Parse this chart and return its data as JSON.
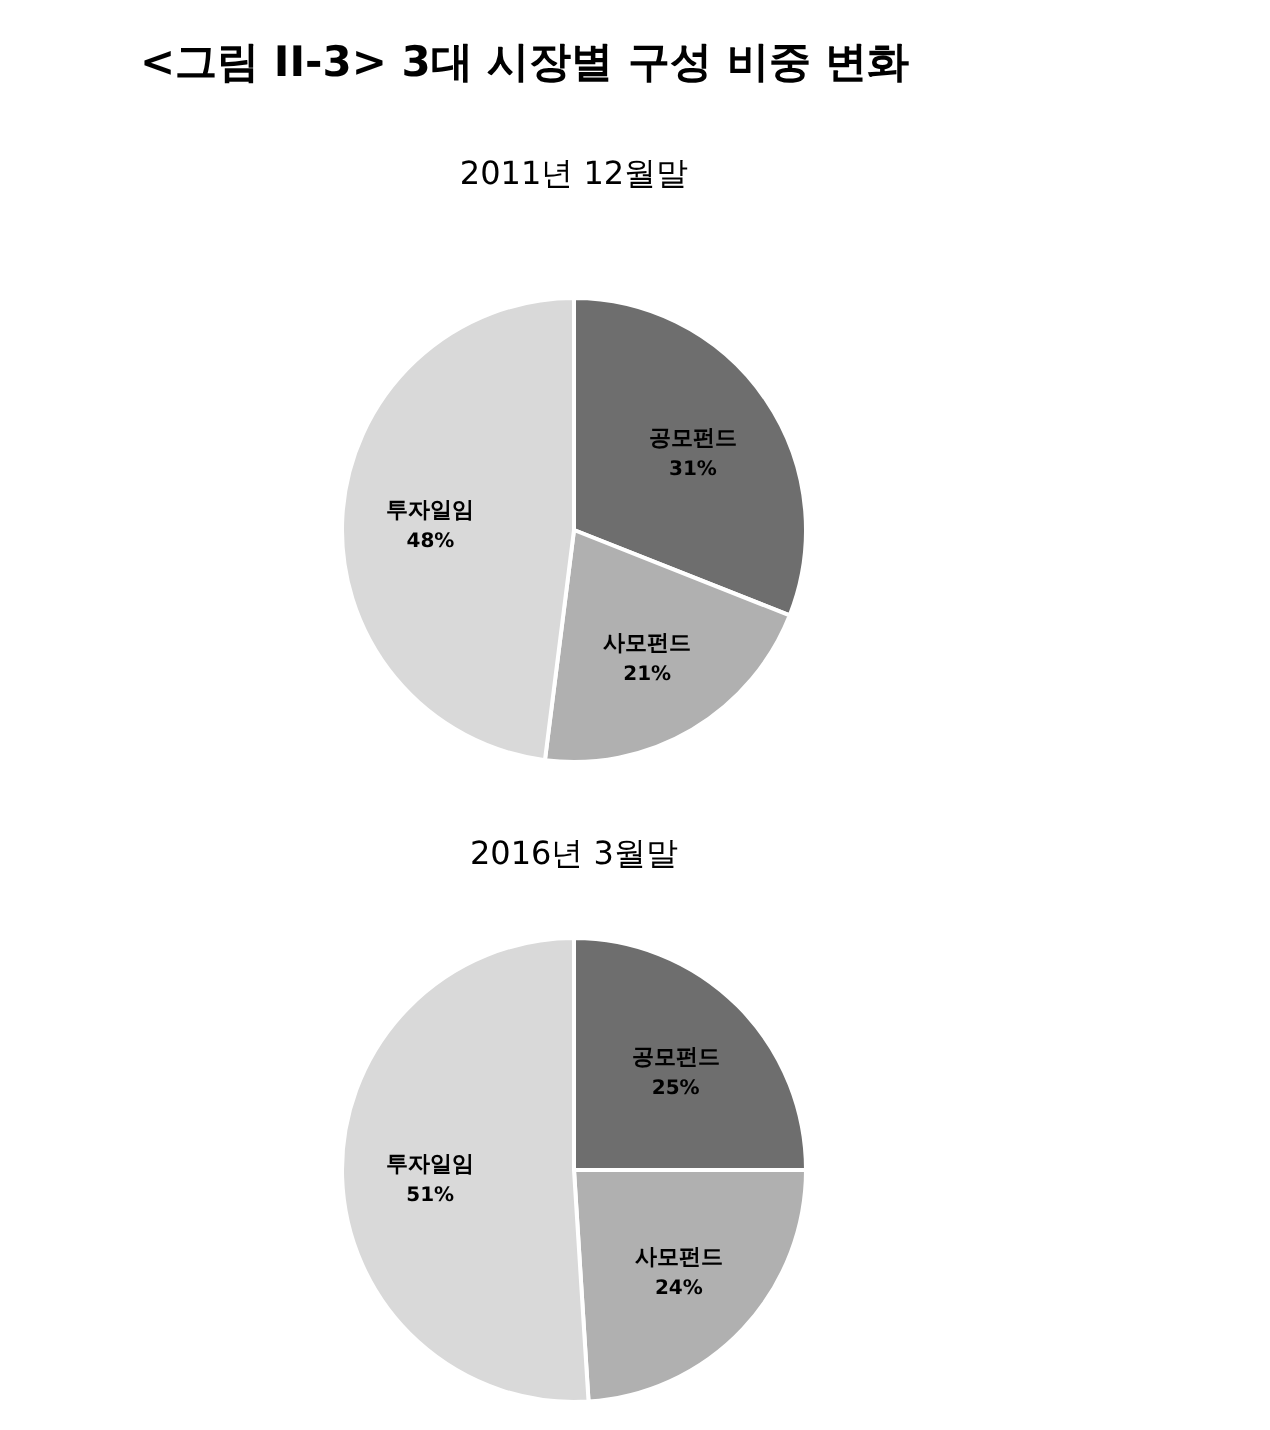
{
  "chart_data": [
    {
      "type": "pie",
      "title": "<그림 II-3> 3대 시장별 구성 비중 변화",
      "subtitle": "2011년 12월말",
      "categories": [
        "공모펀드",
        "사모펀드",
        "투자일임"
      ],
      "values": [
        31,
        21,
        48
      ],
      "value_labels": [
        "31%",
        "21%",
        "48%"
      ],
      "colors": [
        "#6e6e6e",
        "#b0b0b0",
        "#d9d9d9"
      ]
    },
    {
      "type": "pie",
      "title": "2016년 3월말",
      "categories": [
        "공모펀드",
        "사모펀드",
        "투자일임"
      ],
      "values": [
        25,
        24,
        51
      ],
      "value_labels": [
        "25%",
        "24%",
        "51%"
      ],
      "colors": [
        "#6e6e6e",
        "#b0b0b0",
        "#d9d9d9"
      ]
    }
  ]
}
